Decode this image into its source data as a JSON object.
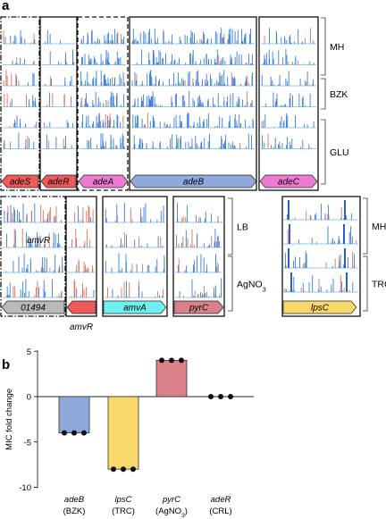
{
  "panel_a": {
    "letter": "a",
    "group1": {
      "conditions": [
        "MH",
        "BZK",
        "GLU"
      ],
      "genes": [
        "adeS",
        "adeR",
        "adeA",
        "adeB",
        "adeC"
      ],
      "colors": {
        "adeS": "#ee5a59",
        "adeR": "#ee5a59",
        "adeA": "#ef7ad4",
        "adeB": "#8fa9dc",
        "adeC": "#ef7ad4"
      }
    },
    "group2": {
      "conditions": [
        "LB",
        "AgNO3"
      ],
      "inline_label": "amvR",
      "below_label": "amvR",
      "genes": [
        "01494",
        "amvA",
        "pyrC"
      ],
      "colors": {
        "01494": "#b9b9b9",
        "amvR": "#ee5a59",
        "amvA": "#6ff0f0",
        "pyrC": "#d9808a"
      }
    },
    "group3": {
      "conditions": [
        "MH",
        "TRC"
      ],
      "genes": [
        "lpsC"
      ],
      "colors": {
        "lpsC": "#f8d86a"
      }
    },
    "signal_colors": {
      "blue": "#3b7fd6",
      "red": "#e0705a",
      "baseline": "#6fb6ea"
    }
  },
  "panel_b": {
    "letter": "b",
    "chart_data": {
      "type": "bar",
      "ylabel": "MIC fold change",
      "ylim": [
        -10,
        5
      ],
      "yticks": [
        5,
        0,
        -5,
        -10
      ],
      "categories": [
        {
          "gene": "adeB",
          "condition": "(BZK)"
        },
        {
          "gene": "lpsC",
          "condition": "(TRC)"
        },
        {
          "gene": "pyrC",
          "condition": "(AgNO3)"
        },
        {
          "gene": "adeR",
          "condition": "(CRL)"
        }
      ],
      "values": [
        -4,
        -8,
        4,
        0
      ],
      "replicates": [
        [
          -4,
          -4,
          -4
        ],
        [
          -8,
          -8,
          -8
        ],
        [
          4,
          4,
          4
        ],
        [
          0,
          0,
          0
        ]
      ],
      "bar_colors": [
        "#8fa9dc",
        "#f8d86a",
        "#d9808a",
        "#ffffff"
      ]
    }
  }
}
